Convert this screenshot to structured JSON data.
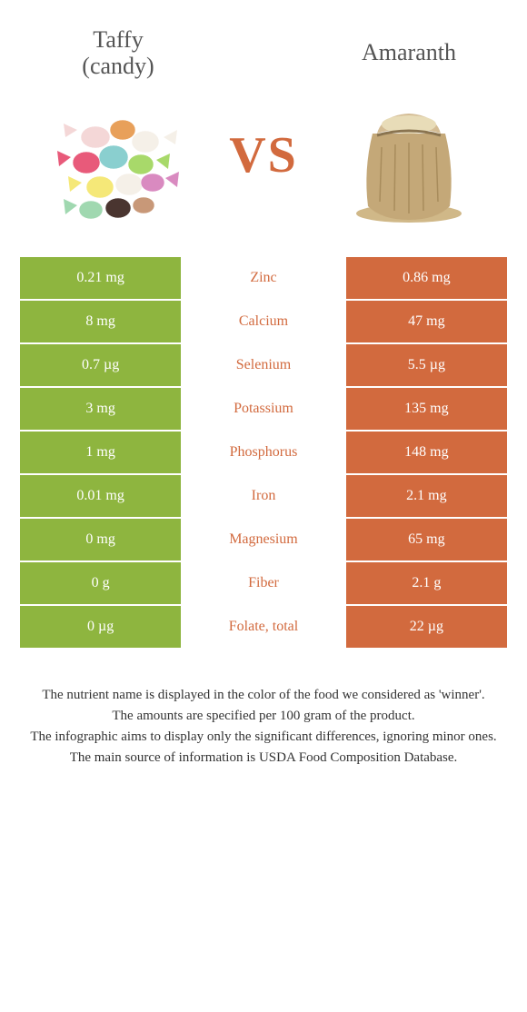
{
  "left_food": {
    "title_line1": "Taffy",
    "title_line2": "(candy)",
    "color": "#8eb53f"
  },
  "right_food": {
    "title": "Amaranth",
    "color": "#d26a3e"
  },
  "vs_label": "VS",
  "vs_color": "#d26a3e",
  "rows": [
    {
      "left": "0.21 mg",
      "nutrient": "Zinc",
      "right": "0.86 mg",
      "winner": "right"
    },
    {
      "left": "8 mg",
      "nutrient": "Calcium",
      "right": "47 mg",
      "winner": "right"
    },
    {
      "left": "0.7 µg",
      "nutrient": "Selenium",
      "right": "5.5 µg",
      "winner": "right"
    },
    {
      "left": "3 mg",
      "nutrient": "Potassium",
      "right": "135 mg",
      "winner": "right"
    },
    {
      "left": "1 mg",
      "nutrient": "Phosphorus",
      "right": "148 mg",
      "winner": "right"
    },
    {
      "left": "0.01 mg",
      "nutrient": "Iron",
      "right": "2.1 mg",
      "winner": "right"
    },
    {
      "left": "0 mg",
      "nutrient": "Magnesium",
      "right": "65 mg",
      "winner": "right"
    },
    {
      "left": "0 g",
      "nutrient": "Fiber",
      "right": "2.1 g",
      "winner": "right"
    },
    {
      "left": "0 µg",
      "nutrient": "Folate, total",
      "right": "22 µg",
      "winner": "right"
    }
  ],
  "footnotes": [
    "The nutrient name is displayed in the color of the food we considered as 'winner'.",
    "The amounts are specified per 100 gram of the product.",
    "The infographic aims to display only the significant differences, ignoring minor ones.",
    "The main source of information is USDA Food Composition Database."
  ]
}
